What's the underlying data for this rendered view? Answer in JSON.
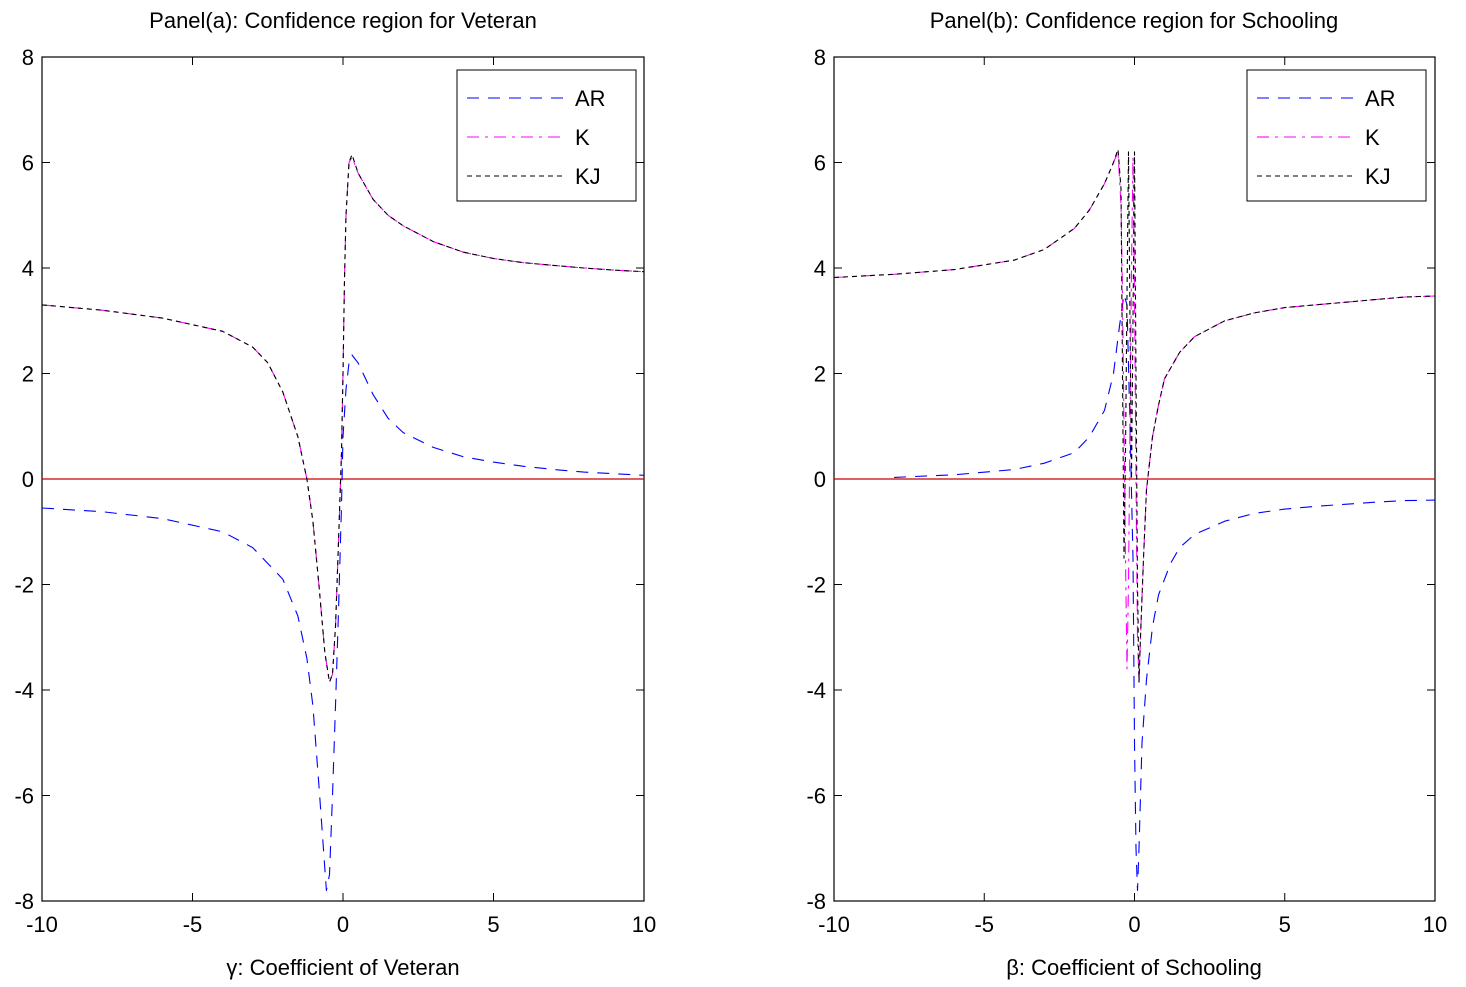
{
  "figure": {
    "background": "#ffffff",
    "zero_line_color": "#cc0000"
  },
  "chart_data": [
    {
      "type": "line",
      "title": "Panel(a): Confidence region for Veteran",
      "xlabel": "γ: Coefficient of Veteran",
      "ylabel": "",
      "xlim": [
        -10,
        10
      ],
      "ylim": [
        -8,
        8
      ],
      "xticks": [
        -10,
        -5,
        0,
        5,
        10
      ],
      "yticks": [
        -8,
        -6,
        -4,
        -2,
        0,
        2,
        4,
        6,
        8
      ],
      "xtick_labels": [
        "-10",
        "-5",
        "0",
        "5",
        "10"
      ],
      "ytick_labels": [
        "-8",
        "-6",
        "-4",
        "-2",
        "0",
        "2",
        "4",
        "6",
        "8"
      ],
      "grid": false,
      "legend_position": "top-right",
      "reference_line": {
        "y": 0,
        "color": "#cc0000"
      },
      "series": [
        {
          "name": "AR",
          "color": "#0000ff",
          "dash": "12,9",
          "segments": [
            [
              [
                -10,
                -0.55
              ],
              [
                -8,
                -0.62
              ],
              [
                -6,
                -0.75
              ],
              [
                -4,
                -1.0
              ],
              [
                -3,
                -1.3
              ],
              [
                -2,
                -1.9
              ],
              [
                -1.5,
                -2.6
              ],
              [
                -1.2,
                -3.4
              ],
              [
                -1,
                -4.3
              ],
              [
                -0.8,
                -5.8
              ],
              [
                -0.65,
                -7.0
              ],
              [
                -0.55,
                -7.8
              ],
              [
                -0.45,
                -7.5
              ],
              [
                -0.35,
                -6.0
              ],
              [
                -0.25,
                -4.3
              ],
              [
                -0.15,
                -2.5
              ],
              [
                -0.05,
                -0.5
              ],
              [
                0,
                0.8
              ],
              [
                0.1,
                1.7
              ],
              [
                0.2,
                2.2
              ],
              [
                0.3,
                2.35
              ],
              [
                0.5,
                2.2
              ],
              [
                1,
                1.6
              ],
              [
                1.5,
                1.15
              ],
              [
                2,
                0.88
              ],
              [
                3,
                0.6
              ],
              [
                4,
                0.42
              ],
              [
                5,
                0.32
              ],
              [
                6,
                0.24
              ],
              [
                7,
                0.18
              ],
              [
                8,
                0.13
              ],
              [
                9,
                0.1
              ],
              [
                10,
                0.07
              ]
            ]
          ]
        },
        {
          "name": "K",
          "color": "#ff00ff",
          "dash": "12,6,3,6",
          "segments": [
            [
              [
                -10,
                3.3
              ],
              [
                -8,
                3.2
              ],
              [
                -6,
                3.05
              ],
              [
                -4,
                2.8
              ],
              [
                -3,
                2.5
              ],
              [
                -2.5,
                2.2
              ],
              [
                -2,
                1.65
              ],
              [
                -1.5,
                0.8
              ],
              [
                -1.2,
                0.0
              ],
              [
                -1,
                -0.8
              ],
              [
                -0.8,
                -2.0
              ],
              [
                -0.6,
                -3.3
              ],
              [
                -0.45,
                -3.85
              ],
              [
                -0.35,
                -3.7
              ],
              [
                -0.25,
                -2.8
              ],
              [
                -0.15,
                -1.2
              ],
              [
                -0.05,
                0.5
              ],
              [
                0,
                2.0
              ],
              [
                0.05,
                3.8
              ],
              [
                0.1,
                5.0
              ],
              [
                0.2,
                6.0
              ],
              [
                0.3,
                6.1
              ],
              [
                0.5,
                5.8
              ],
              [
                1,
                5.3
              ],
              [
                1.5,
                5.0
              ],
              [
                2,
                4.8
              ],
              [
                3,
                4.5
              ],
              [
                4,
                4.3
              ],
              [
                5,
                4.18
              ],
              [
                6,
                4.1
              ],
              [
                7,
                4.05
              ],
              [
                8,
                4.0
              ],
              [
                9,
                3.96
              ],
              [
                10,
                3.93
              ]
            ]
          ]
        },
        {
          "name": "KJ",
          "color": "#000000",
          "dash": "5,4",
          "segments": [
            [
              [
                -10,
                3.3
              ],
              [
                -8,
                3.2
              ],
              [
                -6,
                3.05
              ],
              [
                -4,
                2.8
              ],
              [
                -3,
                2.5
              ],
              [
                -2.5,
                2.2
              ],
              [
                -2,
                1.65
              ],
              [
                -1.5,
                0.8
              ],
              [
                -1.2,
                0.0
              ],
              [
                -1,
                -0.8
              ],
              [
                -0.8,
                -2.0
              ],
              [
                -0.6,
                -3.3
              ],
              [
                -0.45,
                -3.85
              ],
              [
                -0.35,
                -3.7
              ],
              [
                -0.25,
                -2.8
              ],
              [
                -0.15,
                -1.2
              ],
              [
                -0.05,
                0.5
              ],
              [
                0,
                2.0
              ],
              [
                0.05,
                3.8
              ],
              [
                0.1,
                5.0
              ],
              [
                0.2,
                6.0
              ],
              [
                0.3,
                6.15
              ],
              [
                0.5,
                5.8
              ],
              [
                1,
                5.3
              ],
              [
                1.5,
                5.0
              ],
              [
                2,
                4.8
              ],
              [
                3,
                4.5
              ],
              [
                4,
                4.3
              ],
              [
                5,
                4.18
              ],
              [
                6,
                4.1
              ],
              [
                7,
                4.05
              ],
              [
                8,
                4.0
              ],
              [
                9,
                3.96
              ],
              [
                10,
                3.93
              ]
            ]
          ]
        }
      ]
    },
    {
      "type": "line",
      "title": "Panel(b): Confidence region for Schooling",
      "xlabel": "β: Coefficient of Schooling",
      "ylabel": "",
      "xlim": [
        -10,
        10
      ],
      "ylim": [
        -8,
        8
      ],
      "xticks": [
        -10,
        -5,
        0,
        5,
        10
      ],
      "yticks": [
        -8,
        -6,
        -4,
        -2,
        0,
        2,
        4,
        6,
        8
      ],
      "xtick_labels": [
        "-10",
        "-5",
        "0",
        "5",
        "10"
      ],
      "ytick_labels": [
        "-8",
        "-6",
        "-4",
        "-2",
        "0",
        "2",
        "4",
        "6",
        "8"
      ],
      "grid": false,
      "legend_position": "top-right",
      "reference_line": {
        "y": 0,
        "color": "#cc0000"
      },
      "series": [
        {
          "name": "AR",
          "color": "#0000ff",
          "dash": "12,9",
          "segments": [
            [
              [
                -8,
                0.03
              ],
              [
                -6,
                0.08
              ],
              [
                -4,
                0.18
              ],
              [
                -3,
                0.3
              ],
              [
                -2,
                0.5
              ],
              [
                -1.5,
                0.8
              ],
              [
                -1,
                1.3
              ],
              [
                -0.7,
                2.0
              ],
              [
                -0.5,
                2.9
              ],
              [
                -0.35,
                3.5
              ],
              [
                -0.25,
                3.3
              ],
              [
                -0.15,
                1.0
              ],
              [
                -0.05,
                -1.5
              ],
              [
                0,
                -5.0
              ],
              [
                0.05,
                -7.0
              ],
              [
                0.1,
                -7.8
              ],
              [
                0.15,
                -7.0
              ],
              [
                0.25,
                -5.0
              ],
              [
                0.4,
                -3.8
              ],
              [
                0.6,
                -2.8
              ],
              [
                0.8,
                -2.2
              ],
              [
                1.2,
                -1.6
              ],
              [
                1.5,
                -1.3
              ],
              [
                2,
                -1.05
              ],
              [
                3,
                -0.8
              ],
              [
                4,
                -0.65
              ],
              [
                5,
                -0.57
              ],
              [
                6,
                -0.52
              ],
              [
                7,
                -0.48
              ],
              [
                8,
                -0.44
              ],
              [
                9,
                -0.41
              ],
              [
                10,
                -0.4
              ]
            ]
          ]
        },
        {
          "name": "K",
          "color": "#ff00ff",
          "dash": "12,6,3,6",
          "segments": [
            [
              [
                -10,
                3.82
              ],
              [
                -8,
                3.88
              ],
              [
                -6,
                3.97
              ],
              [
                -4,
                4.15
              ],
              [
                -3,
                4.35
              ],
              [
                -2,
                4.75
              ],
              [
                -1.5,
                5.1
              ],
              [
                -1,
                5.6
              ],
              [
                -0.7,
                6.0
              ],
              [
                -0.55,
                6.2
              ],
              [
                -0.45,
                5.2
              ],
              [
                -0.4,
                3.5
              ],
              [
                -0.35,
                1.0
              ],
              [
                -0.3,
                -1.5
              ],
              [
                -0.25,
                -3.6
              ],
              [
                -0.2,
                -2.0
              ],
              [
                -0.15,
                1.0
              ],
              [
                -0.1,
                4.0
              ],
              [
                -0.05,
                6.1
              ],
              [
                0,
                3.5
              ],
              [
                0.05,
                0.0
              ],
              [
                0.1,
                -3.0
              ],
              [
                0.15,
                -3.85
              ],
              [
                0.2,
                -3.0
              ],
              [
                0.3,
                -1.5
              ],
              [
                0.4,
                -0.2
              ],
              [
                0.6,
                0.8
              ],
              [
                0.8,
                1.4
              ],
              [
                1,
                1.9
              ],
              [
                1.5,
                2.4
              ],
              [
                2,
                2.7
              ],
              [
                3,
                3.0
              ],
              [
                4,
                3.15
              ],
              [
                5,
                3.25
              ],
              [
                6,
                3.3
              ],
              [
                7,
                3.35
              ],
              [
                8,
                3.4
              ],
              [
                9,
                3.45
              ],
              [
                10,
                3.47
              ]
            ]
          ]
        },
        {
          "name": "KJ",
          "color": "#000000",
          "dash": "5,4",
          "segments": [
            [
              [
                -10,
                3.82
              ],
              [
                -8,
                3.88
              ],
              [
                -6,
                3.97
              ],
              [
                -4,
                4.15
              ],
              [
                -3,
                4.35
              ],
              [
                -2,
                4.75
              ],
              [
                -1.5,
                5.1
              ],
              [
                -1,
                5.6
              ],
              [
                -0.7,
                6.0
              ],
              [
                -0.55,
                6.25
              ],
              [
                -0.45,
                5.5
              ],
              [
                -0.4,
                2.0
              ],
              [
                -0.35,
                -1.5
              ],
              [
                -0.3,
                0.5
              ],
              [
                -0.25,
                3.5
              ],
              [
                -0.2,
                6.2
              ],
              [
                -0.15,
                3.0
              ],
              [
                -0.1,
                0.0
              ],
              [
                -0.05,
                3.0
              ],
              [
                0,
                6.2
              ],
              [
                0.05,
                2.0
              ],
              [
                0.1,
                -2.0
              ],
              [
                0.15,
                -3.85
              ],
              [
                0.2,
                -3.0
              ],
              [
                0.3,
                -1.5
              ],
              [
                0.4,
                -0.2
              ],
              [
                0.6,
                0.8
              ],
              [
                0.8,
                1.4
              ],
              [
                1,
                1.9
              ],
              [
                1.5,
                2.4
              ],
              [
                2,
                2.7
              ],
              [
                3,
                3.0
              ],
              [
                4,
                3.15
              ],
              [
                5,
                3.25
              ],
              [
                6,
                3.3
              ],
              [
                7,
                3.35
              ],
              [
                8,
                3.4
              ],
              [
                9,
                3.45
              ],
              [
                10,
                3.47
              ]
            ]
          ]
        }
      ]
    }
  ]
}
